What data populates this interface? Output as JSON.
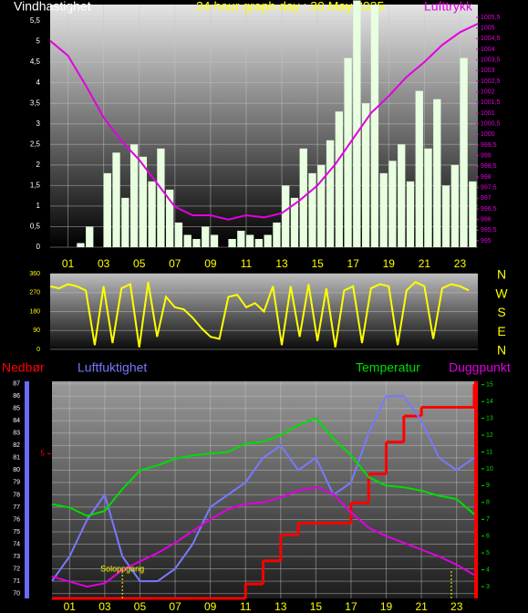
{
  "chart_data": [
    {
      "type": "bar",
      "title": "24 hour graph day : 30 May 2025",
      "ylabel": "Vindhastighet",
      "y2label": "Lufttrykk",
      "xlim": [
        0,
        24
      ],
      "xticks": [
        {
          "value": 1,
          "label": "01"
        },
        {
          "value": 3,
          "label": "03"
        },
        {
          "value": 5,
          "label": "05"
        },
        {
          "value": 7,
          "label": "07"
        },
        {
          "value": 9,
          "label": "09"
        },
        {
          "value": 11,
          "label": "11"
        },
        {
          "value": 13,
          "label": "13"
        },
        {
          "value": 15,
          "label": "15"
        },
        {
          "value": 17,
          "label": "17"
        },
        {
          "value": 19,
          "label": "19"
        },
        {
          "value": 21,
          "label": "21"
        },
        {
          "value": 23,
          "label": "23"
        }
      ],
      "ylim": [
        0,
        5.9
      ],
      "yticks": [
        0,
        {
          "value": 0.5,
          "label": "0,5"
        },
        1,
        {
          "value": 1.5,
          "label": "1,5"
        },
        2,
        {
          "value": 2.5,
          "label": "2,5"
        },
        3,
        {
          "value": 3.5,
          "label": "3,5"
        },
        4,
        {
          "value": 4.5,
          "label": "4,5"
        },
        5,
        {
          "value": 5.5,
          "label": "5,5"
        }
      ],
      "y2lim": [
        994.7,
        1006.1
      ],
      "y2ticks": [
        995,
        {
          "value": 995.5,
          "label": "995,5"
        },
        996,
        {
          "value": 996.5,
          "label": "996,5"
        },
        997,
        {
          "value": 997.5,
          "label": "997,5"
        },
        998,
        {
          "value": 998.5,
          "label": "998,5"
        },
        999,
        {
          "value": 999.5,
          "label": "999,5"
        },
        1000,
        {
          "value": 1000.5,
          "label": "1000,5"
        },
        1001,
        {
          "value": 1001.5,
          "label": "1001,5"
        },
        1002,
        {
          "value": 1002.5,
          "label": "1002,5"
        },
        1003,
        {
          "value": 1003.5,
          "label": "1003,5"
        },
        1004,
        {
          "value": 1004.5,
          "label": "1004,5"
        },
        1005,
        {
          "value": 1005.5,
          "label": "1005,5"
        }
      ],
      "grid": true,
      "series": [
        {
          "type": "bar",
          "color": "#e8ffe0",
          "x": [
            0,
            0.5,
            1,
            1.5,
            2,
            2.5,
            3,
            3.5,
            4,
            4.5,
            5,
            5.5,
            6,
            6.5,
            7,
            7.5,
            8,
            8.5,
            9,
            9.5,
            10,
            10.5,
            11,
            11.5,
            12,
            12.5,
            13,
            13.5,
            14,
            14.5,
            15,
            15.5,
            16,
            16.5,
            17,
            17.5,
            18,
            18.5,
            19,
            19.5,
            20,
            20.5,
            21,
            21.5,
            22,
            22.5,
            23,
            23.5
          ],
          "values": [
            0,
            0,
            0,
            0.1,
            0.5,
            0,
            1.8,
            2.3,
            1.2,
            2.5,
            2.2,
            1.6,
            2.4,
            1.4,
            0.6,
            0.3,
            0.2,
            0.5,
            0.3,
            0,
            0.2,
            0.4,
            0.3,
            0.2,
            0.3,
            0.6,
            1.5,
            1.2,
            2.4,
            1.8,
            2.0,
            2.6,
            3.3,
            4.6,
            6.0,
            3.5,
            5.9,
            1.8,
            2.1,
            2.5,
            1.6,
            3.8,
            2.4,
            3.6,
            1.5,
            2.0,
            4.6,
            1.6
          ]
        },
        {
          "type": "line",
          "axis": "y2",
          "color": "#e000e0",
          "x": [
            0,
            1,
            2,
            3,
            4,
            5,
            6,
            7,
            8,
            9,
            10,
            11,
            12,
            13,
            14,
            15,
            16,
            17,
            18,
            19,
            20,
            21,
            22,
            23,
            24
          ],
          "values": [
            1004.4,
            1003.7,
            1002.3,
            1000.8,
            999.7,
            998.8,
            997.7,
            996.6,
            996.2,
            996.2,
            996.0,
            996.2,
            996.1,
            996.3,
            996.9,
            997.6,
            998.6,
            999.8,
            1001.0,
            1001.8,
            1002.7,
            1003.4,
            1004.2,
            1004.8,
            1005.2
          ]
        }
      ]
    },
    {
      "type": "line",
      "xlim": [
        0,
        24
      ],
      "ylim": [
        0,
        360
      ],
      "yticks": [
        0,
        90,
        180,
        270,
        360
      ],
      "grid": true,
      "compass": [
        "N",
        "W",
        "S",
        "E",
        "N"
      ],
      "series": [
        {
          "type": "line",
          "color": "#ffff00",
          "x": [
            0,
            0.5,
            1,
            1.5,
            2,
            2.5,
            3,
            3.5,
            4,
            4.5,
            5,
            5.5,
            6,
            6.5,
            7,
            7.5,
            8,
            8.5,
            9,
            9.5,
            10,
            10.5,
            11,
            11.5,
            12,
            12.5,
            13,
            13.5,
            14,
            14.5,
            15,
            15.5,
            16,
            16.5,
            17,
            17.5,
            18,
            18.5,
            19,
            19.5,
            20,
            20.5,
            21,
            21.5,
            22,
            22.5,
            23,
            23.5
          ],
          "values": [
            300,
            290,
            310,
            300,
            280,
            20,
            300,
            30,
            290,
            310,
            10,
            320,
            60,
            250,
            200,
            190,
            150,
            100,
            60,
            50,
            250,
            260,
            200,
            220,
            180,
            300,
            20,
            300,
            60,
            310,
            40,
            290,
            10,
            280,
            300,
            30,
            290,
            310,
            300,
            20,
            280,
            320,
            300,
            50,
            290,
            310,
            300,
            280
          ]
        }
      ]
    },
    {
      "type": "line",
      "xlim": [
        0,
        24
      ],
      "xticks": [
        {
          "value": 1,
          "label": "01"
        },
        {
          "value": 3,
          "label": "03"
        },
        {
          "value": 5,
          "label": "05"
        },
        {
          "value": 7,
          "label": "07"
        },
        {
          "value": 9,
          "label": "09"
        },
        {
          "value": 11,
          "label": "11"
        },
        {
          "value": 13,
          "label": "13"
        },
        {
          "value": 15,
          "label": "15"
        },
        {
          "value": 17,
          "label": "17"
        },
        {
          "value": 19,
          "label": "19"
        },
        {
          "value": 21,
          "label": "21"
        },
        {
          "value": 23,
          "label": "23"
        }
      ],
      "ylim": [
        69.6,
        87.2
      ],
      "yticks": [
        70,
        71,
        72,
        73,
        74,
        75,
        76,
        77,
        78,
        79,
        80,
        81,
        82,
        83,
        84,
        85,
        86,
        87
      ],
      "y2lim": [
        2.3,
        15.2
      ],
      "y2ticks": [
        3,
        4,
        5,
        6,
        7,
        8,
        9,
        10,
        11,
        12,
        13,
        14,
        15
      ],
      "y3lim": [
        0,
        7.5
      ],
      "y3ticks": [
        5
      ],
      "grid": true,
      "x": [
        0,
        1,
        2,
        3,
        4,
        5,
        6,
        7,
        8,
        9,
        10,
        11,
        12,
        13,
        14,
        15,
        16,
        17,
        18,
        19,
        20,
        21,
        22,
        23,
        24
      ],
      "annotations": [
        {
          "text": "Soloppgang",
          "x": 4
        }
      ],
      "sunset_x": 22.7,
      "series": [
        {
          "name": "Nedbør",
          "type": "step",
          "axis": "y3",
          "color": "#ff0000",
          "values": [
            0,
            0,
            0,
            0,
            0,
            0,
            0,
            0,
            0,
            0,
            0,
            0.5,
            1.3,
            2.2,
            2.6,
            2.6,
            2.6,
            3.3,
            4.3,
            5.4,
            6.3,
            6.6,
            6.6,
            6.6,
            7.4
          ]
        },
        {
          "name": "Luftfuktighet",
          "type": "line",
          "color": "#7878ff",
          "values": [
            71,
            73,
            76,
            78,
            73,
            71,
            71,
            72,
            74,
            77,
            78,
            79,
            81,
            82,
            80,
            81,
            78,
            79,
            83,
            86,
            86,
            84,
            81,
            80,
            81
          ]
        },
        {
          "name": "Temperatur",
          "type": "line",
          "axis": "y2",
          "color": "#00dd00",
          "values": [
            7.9,
            7.7,
            7.2,
            7.5,
            8.8,
            9.9,
            10.2,
            10.6,
            10.8,
            10.9,
            11.0,
            11.5,
            11.6,
            12.0,
            12.6,
            13.0,
            11.8,
            10.8,
            9.5,
            9.0,
            8.9,
            8.7,
            8.4,
            8.2,
            7.3
          ]
        },
        {
          "name": "Duggpunkt",
          "type": "line",
          "axis": "y2",
          "color": "#e000e0",
          "values": [
            3.6,
            3.3,
            3.0,
            3.2,
            4.0,
            4.5,
            5.0,
            5.6,
            6.3,
            7.0,
            7.6,
            7.9,
            8.0,
            8.3,
            8.7,
            8.9,
            8.5,
            7.4,
            6.5,
            6.0,
            5.6,
            5.2,
            4.8,
            4.3,
            3.7
          ]
        }
      ]
    }
  ]
}
